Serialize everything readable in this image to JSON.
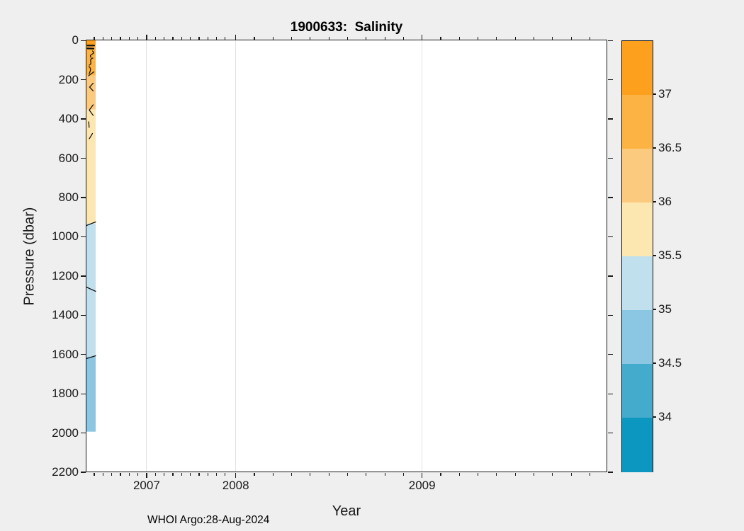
{
  "title": "1900633:  Salinity",
  "xlabel": "Year",
  "ylabel": "Pressure (dbar)",
  "credit": "WHOI Argo:28-Aug-2024",
  "axes": {
    "x_tick_labels": [
      "2007",
      "2008",
      "2009"
    ],
    "y_tick_labels": [
      "0",
      "200",
      "400",
      "600",
      "800",
      "1000",
      "1200",
      "1400",
      "1600",
      "1800",
      "2000",
      "2200"
    ]
  },
  "colorbar": {
    "labels_top_to_bottom": [
      "37",
      "36.5",
      "36",
      "35.5",
      "35",
      "34.5",
      "34"
    ],
    "band_keys_top_to_bottom": [
      "s_gt_37",
      "s_365_37",
      "s_36_365",
      "s_355_36",
      "s_35_355",
      "s_345_35",
      "s_34_345",
      "s_lt_34"
    ]
  },
  "palette": {
    "s_gt_37": "#FCA01E",
    "s_365_37": "#FCB344",
    "s_36_365": "#FBCA7E",
    "s_355_36": "#FDE7B0",
    "s_35_355": "#C1E0EE",
    "s_345_35": "#8BC7E2",
    "s_34_345": "#45ABCC",
    "s_lt_34": "#0B97BF",
    "grid": "#e2e2e2",
    "axis": "#1a1a1a",
    "figure_bg": "#efefef"
  },
  "chart_data": {
    "type": "heatmap",
    "title": "1900633:  Salinity",
    "xlabel": "Year",
    "ylabel": "Pressure (dbar)",
    "x_tick_labels": [
      2007,
      2008,
      2009
    ],
    "y_ticks": [
      0,
      200,
      400,
      600,
      800,
      1000,
      1200,
      1400,
      1600,
      1800,
      2000,
      2200
    ],
    "y_axis_reversed": true,
    "grid": "x-only",
    "legend_position": "colorbar-right",
    "colorbar_levels": [
      34,
      34.5,
      35,
      35.5,
      36,
      36.5,
      37
    ],
    "data_time_extent": "narrow band at far left of axis (float record begins mid-2006 and ends shortly after)",
    "max_pressure_sampled_dbar": 1995,
    "salinity_profile_bands": [
      {
        "pressure_range_dbar": [
          0,
          25
        ],
        "salinity_psu": ">37"
      },
      {
        "pressure_range_dbar": [
          25,
          180
        ],
        "salinity_psu": "36.5-37"
      },
      {
        "pressure_range_dbar": [
          180,
          355
        ],
        "salinity_psu": "36-36.5"
      },
      {
        "pressure_range_dbar": [
          355,
          935
        ],
        "salinity_psu": "35.5-36"
      },
      {
        "pressure_range_dbar": [
          935,
          1610
        ],
        "salinity_psu": "35-35.5"
      },
      {
        "pressure_range_dbar": [
          1610,
          1995
        ],
        "salinity_psu": "34.5-35"
      }
    ],
    "contour_lines": "black contour lines at 0.5 psu band boundaries, meandering near surface"
  }
}
